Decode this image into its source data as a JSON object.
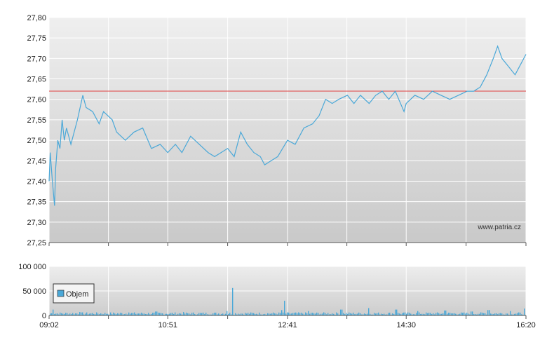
{
  "chart_data": [
    {
      "type": "line",
      "title": "",
      "xlabel": "",
      "ylabel": "",
      "ylim": [
        27.25,
        27.8
      ],
      "yticks": [
        27.25,
        27.3,
        27.35,
        27.4,
        27.45,
        27.5,
        27.55,
        27.6,
        27.65,
        27.7,
        27.75,
        27.8
      ],
      "ytick_labels": [
        "27,25",
        "27,30",
        "27,35",
        "27,40",
        "27,45",
        "27,50",
        "27,55",
        "27,60",
        "27,65",
        "27,70",
        "27,75",
        "27,80"
      ],
      "reference_line": {
        "value": 27.62,
        "color": "#e04040"
      },
      "watermark": "www.patria.cz",
      "series": [
        {
          "color": "#4aa8d8",
          "points": [
            [
              "09:02",
              27.4
            ],
            [
              "09:03",
              27.47
            ],
            [
              "09:05",
              27.4
            ],
            [
              "09:07",
              27.34
            ],
            [
              "09:08",
              27.43
            ],
            [
              "09:10",
              27.5
            ],
            [
              "09:12",
              27.48
            ],
            [
              "09:14",
              27.55
            ],
            [
              "09:16",
              27.5
            ],
            [
              "09:18",
              27.53
            ],
            [
              "09:22",
              27.49
            ],
            [
              "09:28",
              27.55
            ],
            [
              "09:33",
              27.61
            ],
            [
              "09:36",
              27.58
            ],
            [
              "09:42",
              27.57
            ],
            [
              "09:48",
              27.54
            ],
            [
              "09:52",
              27.57
            ],
            [
              "10:00",
              27.55
            ],
            [
              "10:04",
              27.52
            ],
            [
              "10:12",
              27.5
            ],
            [
              "10:20",
              27.52
            ],
            [
              "10:28",
              27.53
            ],
            [
              "10:36",
              27.48
            ],
            [
              "10:44",
              27.49
            ],
            [
              "10:51",
              27.47
            ],
            [
              "10:58",
              27.49
            ],
            [
              "11:04",
              27.47
            ],
            [
              "11:12",
              27.51
            ],
            [
              "11:20",
              27.49
            ],
            [
              "11:28",
              27.47
            ],
            [
              "11:34",
              27.46
            ],
            [
              "11:40",
              27.47
            ],
            [
              "11:46",
              27.48
            ],
            [
              "11:52",
              27.46
            ],
            [
              "11:58",
              27.52
            ],
            [
              "12:04",
              27.49
            ],
            [
              "12:10",
              27.47
            ],
            [
              "12:16",
              27.46
            ],
            [
              "12:20",
              27.44
            ],
            [
              "12:26",
              27.45
            ],
            [
              "12:32",
              27.46
            ],
            [
              "12:41",
              27.5
            ],
            [
              "12:48",
              27.49
            ],
            [
              "12:56",
              27.53
            ],
            [
              "13:04",
              27.54
            ],
            [
              "13:10",
              27.56
            ],
            [
              "13:16",
              27.6
            ],
            [
              "13:22",
              27.59
            ],
            [
              "13:28",
              27.6
            ],
            [
              "13:36",
              27.61
            ],
            [
              "13:42",
              27.59
            ],
            [
              "13:48",
              27.61
            ],
            [
              "13:56",
              27.59
            ],
            [
              "14:02",
              27.61
            ],
            [
              "14:08",
              27.62
            ],
            [
              "14:14",
              27.6
            ],
            [
              "14:20",
              27.62
            ],
            [
              "14:28",
              27.57
            ],
            [
              "14:30",
              27.59
            ],
            [
              "14:38",
              27.61
            ],
            [
              "14:46",
              27.6
            ],
            [
              "14:54",
              27.62
            ],
            [
              "15:02",
              27.61
            ],
            [
              "15:10",
              27.6
            ],
            [
              "15:18",
              27.61
            ],
            [
              "15:26",
              27.62
            ],
            [
              "15:32",
              27.62
            ],
            [
              "15:38",
              27.63
            ],
            [
              "15:44",
              27.66
            ],
            [
              "15:50",
              27.7
            ],
            [
              "15:54",
              27.73
            ],
            [
              "15:58",
              27.7
            ],
            [
              "16:04",
              27.68
            ],
            [
              "16:10",
              27.66
            ],
            [
              "16:16",
              27.69
            ],
            [
              "16:20",
              27.71
            ]
          ]
        }
      ]
    },
    {
      "type": "bar",
      "title": "",
      "xlabel": "",
      "ylabel": "",
      "ylim": [
        0,
        100000
      ],
      "yticks": [
        0,
        50000,
        100000
      ],
      "ytick_labels": [
        "0",
        "50 000",
        "100 000"
      ],
      "xticks": [
        "09:02",
        "10:51",
        "12:41",
        "14:30",
        "16:20"
      ],
      "legend": {
        "position": "left",
        "entries": [
          "Objem"
        ]
      },
      "series": [
        {
          "name": "Objem",
          "color": "#4aa8d8",
          "baseline_volume": 4000,
          "spikes": [
            [
              "09:05",
              12000
            ],
            [
              "09:30",
              7000
            ],
            [
              "10:15",
              6000
            ],
            [
              "10:40",
              8000
            ],
            [
              "11:05",
              7000
            ],
            [
              "11:45",
              9000
            ],
            [
              "11:50",
              56000
            ],
            [
              "12:35",
              11000
            ],
            [
              "12:38",
              30000
            ],
            [
              "13:00",
              9000
            ],
            [
              "13:30",
              12000
            ],
            [
              "13:55",
              15000
            ],
            [
              "14:20",
              12000
            ],
            [
              "14:40",
              9000
            ],
            [
              "15:05",
              10000
            ],
            [
              "15:30",
              8000
            ],
            [
              "15:45",
              11000
            ],
            [
              "16:05",
              9000
            ],
            [
              "16:18",
              14000
            ]
          ]
        }
      ]
    }
  ]
}
